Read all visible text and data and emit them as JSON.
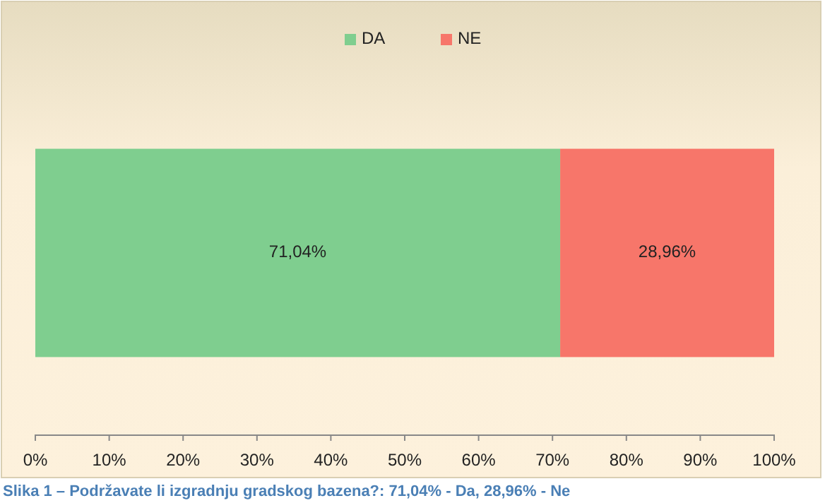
{
  "chart_data": {
    "type": "bar",
    "orientation": "horizontal",
    "stacked": true,
    "categories": [
      null
    ],
    "series": [
      {
        "name": "DA",
        "color": "#7fce8f",
        "values": [
          71.04
        ],
        "value_labels": [
          "71,04%"
        ]
      },
      {
        "name": "NE",
        "color": "#f7766a",
        "values": [
          28.96
        ],
        "value_labels": [
          "28,96%"
        ]
      }
    ],
    "xlim": [
      0,
      100
    ],
    "xticks": [
      {
        "value": 0,
        "label": "0%"
      },
      {
        "value": 10,
        "label": "10%"
      },
      {
        "value": 20,
        "label": "20%"
      },
      {
        "value": 30,
        "label": "30%"
      },
      {
        "value": 40,
        "label": "40%"
      },
      {
        "value": 50,
        "label": "50%"
      },
      {
        "value": 60,
        "label": "60%"
      },
      {
        "value": 70,
        "label": "70%"
      },
      {
        "value": 80,
        "label": "80%"
      },
      {
        "value": 90,
        "label": "90%"
      },
      {
        "value": 100,
        "label": "100%"
      }
    ],
    "grid": false,
    "legend": "top",
    "annotations": [
      "Slika 1 – Podržavate li izgradnju gradskog bazena?: 71,04%  - Da,  28,96%  - Ne"
    ]
  }
}
